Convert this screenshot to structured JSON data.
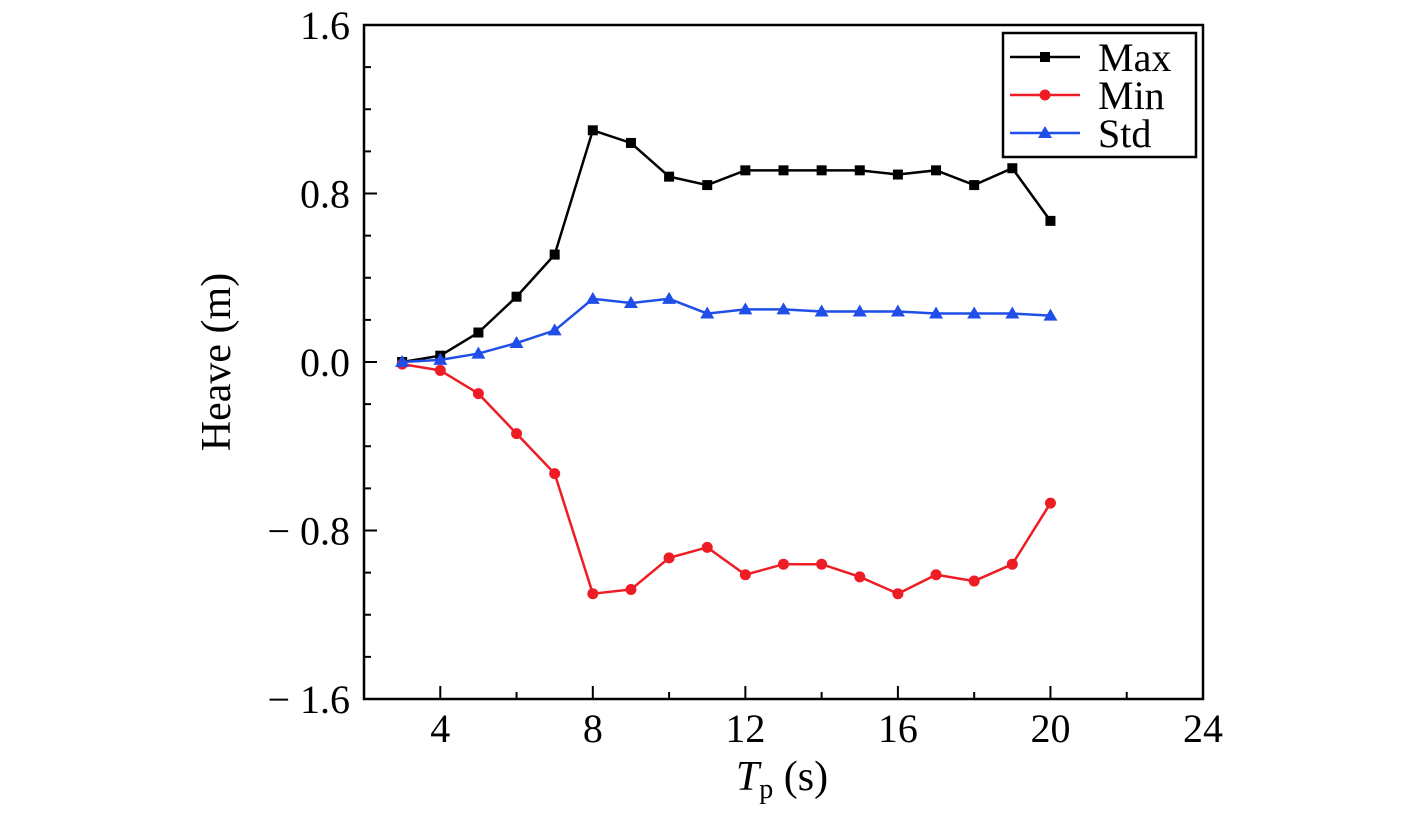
{
  "chart_data": {
    "type": "line",
    "xlabel_main": "T",
    "xlabel_sub": "p",
    "xlabel_unit": " (s)",
    "ylabel": "Heave (m)",
    "xlim": [
      2,
      24
    ],
    "ylim": [
      -1.6,
      1.6
    ],
    "x_ticks": [
      4,
      8,
      12,
      16,
      20,
      24
    ],
    "x_tick_labels": [
      "4",
      "8",
      "12",
      "16",
      "20",
      "24"
    ],
    "x_minor_ticks": [
      2,
      6,
      10,
      14,
      18,
      22
    ],
    "y_ticks": [
      -1.6,
      -0.8,
      0.0,
      0.8,
      1.6
    ],
    "y_tick_labels": [
      "− 1.6",
      "− 0.8",
      "0.0",
      "0.8",
      "1.6"
    ],
    "y_minor_ticks": [
      -1.4,
      -1.2,
      -1.0,
      -0.6,
      -0.4,
      -0.2,
      0.2,
      0.4,
      0.6,
      1.0,
      1.2,
      1.4
    ],
    "grid": false,
    "legend_position": "top-right",
    "x": [
      3,
      4,
      5,
      6,
      7,
      8,
      9,
      10,
      11,
      12,
      13,
      14,
      15,
      16,
      17,
      18,
      19,
      20
    ],
    "series": [
      {
        "name": "Max",
        "color": "#000000",
        "marker": "square",
        "values": [
          0.0,
          0.03,
          0.14,
          0.31,
          0.51,
          1.1,
          1.04,
          0.88,
          0.84,
          0.91,
          0.91,
          0.91,
          0.91,
          0.89,
          0.91,
          0.84,
          0.92,
          0.67
        ]
      },
      {
        "name": "Min",
        "color": "#ee1c24",
        "marker": "circle",
        "values": [
          -0.01,
          -0.04,
          -0.15,
          -0.34,
          -0.53,
          -1.1,
          -1.08,
          -0.93,
          -0.88,
          -1.01,
          -0.96,
          -0.96,
          -1.02,
          -1.1,
          -1.01,
          -1.04,
          -0.96,
          -0.67
        ]
      },
      {
        "name": "Std",
        "color": "#1f4fe8",
        "marker": "triangle",
        "values": [
          0.0,
          0.01,
          0.04,
          0.09,
          0.15,
          0.3,
          0.28,
          0.3,
          0.23,
          0.25,
          0.25,
          0.24,
          0.24,
          0.24,
          0.23,
          0.23,
          0.23,
          0.22
        ]
      }
    ]
  }
}
